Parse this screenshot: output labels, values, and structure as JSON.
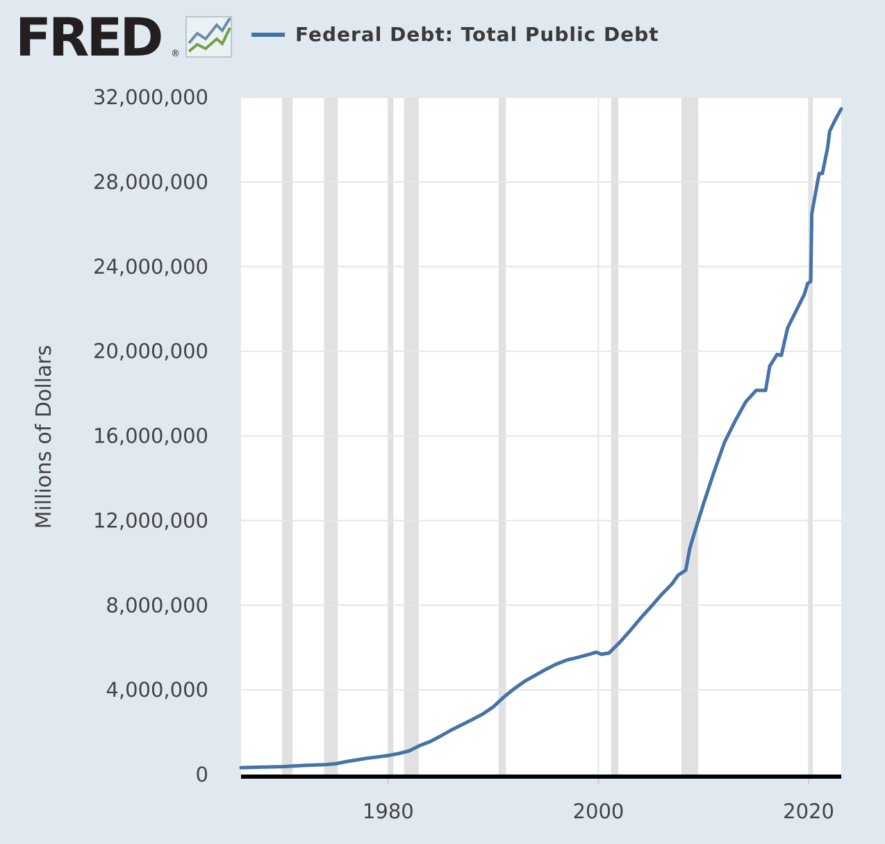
{
  "logo": {
    "text": "FRED",
    "registered": "®"
  },
  "colors": {
    "background": "#e1e9f0",
    "plot_background": "#ffffff",
    "series": "#4572a7",
    "recession": "#e1e1e1",
    "grid": "#e6e6e6",
    "baseline": "#000000"
  },
  "chart_data": {
    "type": "line",
    "title": "",
    "ylabel": "Millions of Dollars",
    "xlabel": "",
    "xlim": [
      1966.0,
      2023.1
    ],
    "ylim": [
      0,
      32000000
    ],
    "x_ticks": [
      1980,
      2000,
      2020
    ],
    "x_tick_labels": [
      "1980",
      "2000",
      "2020"
    ],
    "y_ticks": [
      0,
      4000000,
      8000000,
      12000000,
      16000000,
      20000000,
      24000000,
      28000000,
      32000000
    ],
    "y_tick_labels": [
      "0",
      "4,000,000",
      "8,000,000",
      "12,000,000",
      "16,000,000",
      "20,000,000",
      "24,000,000",
      "28,000,000",
      "32,000,000"
    ],
    "grid": true,
    "legend": "top",
    "recessions": [
      [
        1969.9,
        1970.9
      ],
      [
        1973.9,
        1975.2
      ],
      [
        1980.0,
        1980.5
      ],
      [
        1981.5,
        1982.9
      ],
      [
        1990.5,
        1991.2
      ],
      [
        2001.2,
        2001.9
      ],
      [
        2007.9,
        2009.5
      ],
      [
        2020.0,
        2020.3
      ]
    ],
    "series": [
      {
        "name": "Federal Debt: Total Public Debt",
        "points": [
          [
            1966.0,
            325000
          ],
          [
            1968.0,
            350000
          ],
          [
            1970.0,
            375000
          ],
          [
            1972.0,
            430000
          ],
          [
            1974.0,
            470000
          ],
          [
            1975.0,
            510000
          ],
          [
            1976.0,
            610000
          ],
          [
            1977.0,
            690000
          ],
          [
            1978.0,
            770000
          ],
          [
            1979.0,
            830000
          ],
          [
            1980.0,
            900000
          ],
          [
            1981.0,
            990000
          ],
          [
            1982.0,
            1120000
          ],
          [
            1983.0,
            1370000
          ],
          [
            1984.0,
            1560000
          ],
          [
            1985.0,
            1820000
          ],
          [
            1986.0,
            2100000
          ],
          [
            1987.0,
            2350000
          ],
          [
            1988.0,
            2600000
          ],
          [
            1989.0,
            2860000
          ],
          [
            1990.0,
            3200000
          ],
          [
            1991.0,
            3660000
          ],
          [
            1992.0,
            4060000
          ],
          [
            1993.0,
            4410000
          ],
          [
            1994.0,
            4690000
          ],
          [
            1995.0,
            4970000
          ],
          [
            1996.0,
            5220000
          ],
          [
            1997.0,
            5410000
          ],
          [
            1998.0,
            5530000
          ],
          [
            1999.0,
            5660000
          ],
          [
            1999.8,
            5780000
          ],
          [
            2000.3,
            5680000
          ],
          [
            2001.0,
            5740000
          ],
          [
            2002.0,
            6230000
          ],
          [
            2003.0,
            6790000
          ],
          [
            2004.0,
            7380000
          ],
          [
            2005.0,
            7930000
          ],
          [
            2006.0,
            8500000
          ],
          [
            2007.0,
            9010000
          ],
          [
            2007.6,
            9430000
          ],
          [
            2008.3,
            9650000
          ],
          [
            2008.7,
            10700000
          ],
          [
            2009.0,
            11200000
          ],
          [
            2010.0,
            12800000
          ],
          [
            2011.0,
            14300000
          ],
          [
            2012.0,
            15700000
          ],
          [
            2013.0,
            16700000
          ],
          [
            2014.0,
            17600000
          ],
          [
            2015.0,
            18150000
          ],
          [
            2015.9,
            18150000
          ],
          [
            2016.3,
            19300000
          ],
          [
            2017.0,
            19850000
          ],
          [
            2017.4,
            19800000
          ],
          [
            2018.0,
            21100000
          ],
          [
            2019.0,
            22100000
          ],
          [
            2019.6,
            22700000
          ],
          [
            2019.9,
            23200000
          ],
          [
            2020.2,
            23300000
          ],
          [
            2020.3,
            26500000
          ],
          [
            2021.0,
            28400000
          ],
          [
            2021.3,
            28400000
          ],
          [
            2021.8,
            29600000
          ],
          [
            2022.0,
            30400000
          ],
          [
            2022.5,
            30900000
          ],
          [
            2023.1,
            31450000
          ]
        ]
      }
    ]
  }
}
